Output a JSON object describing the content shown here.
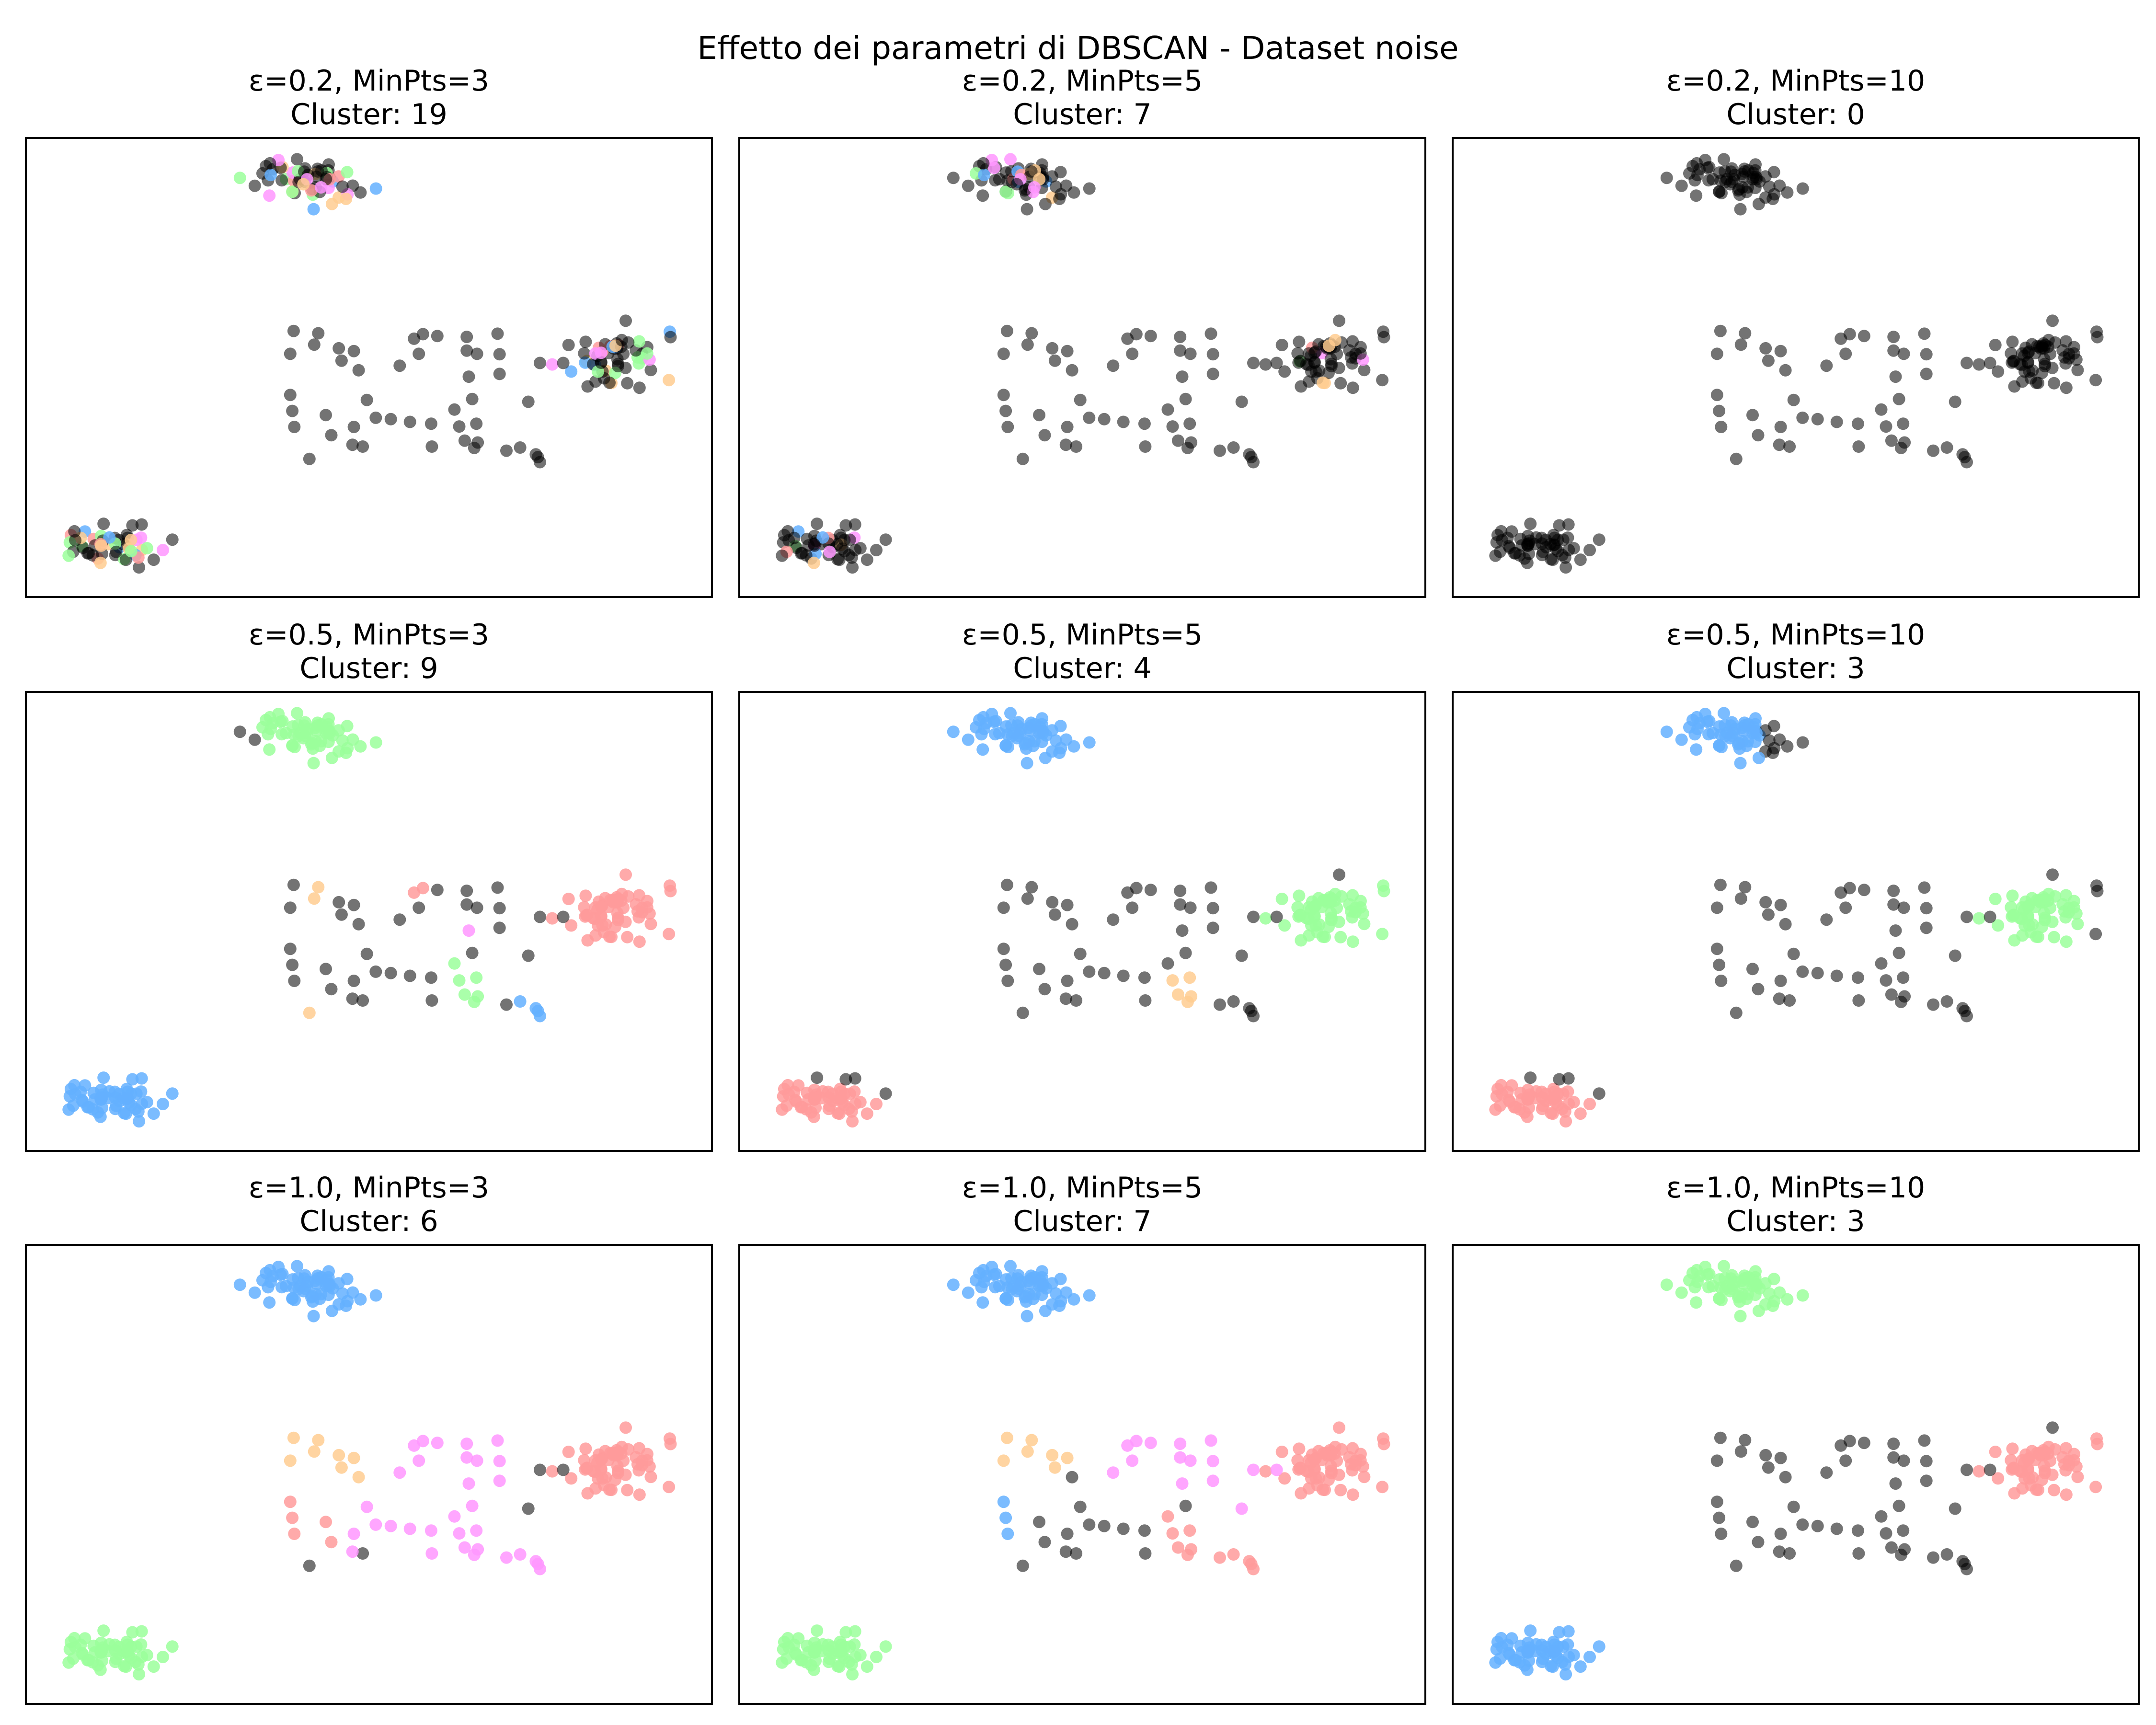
{
  "title": "Effetto dei parametri di DBSCAN - Dataset noise",
  "colors": {
    "noise": "#000000",
    "blue": "#64B0FF",
    "green": "#9BFF9B",
    "red": "#FF9B9B",
    "orange": "#FFCD91",
    "magenta": "#FF96FF"
  },
  "chart_data": [
    {
      "type": "scatter",
      "title": "ε=0.2, MinPts=3",
      "subtitle": "Cluster: 19",
      "parameters": {
        "eps": 0.2,
        "min_pts": 3
      },
      "n_clusters": 19,
      "groups": {
        "G1": "mixed",
        "G2": "noise",
        "G3": "mixed",
        "G4": "mixed"
      },
      "xlim": [
        0,
        100
      ],
      "ylim": [
        0,
        100
      ]
    },
    {
      "type": "scatter",
      "title": "ε=0.2, MinPts=5",
      "subtitle": "Cluster: 7",
      "parameters": {
        "eps": 0.2,
        "min_pts": 5
      },
      "n_clusters": 7,
      "groups": {
        "G1": "mostly-noise",
        "G2": "noise",
        "G3": "mostly-noise",
        "G4": "mostly-noise"
      },
      "xlim": [
        0,
        100
      ],
      "ylim": [
        0,
        100
      ]
    },
    {
      "type": "scatter",
      "title": "ε=0.2, MinPts=10",
      "subtitle": "Cluster: 0",
      "parameters": {
        "eps": 0.2,
        "min_pts": 10
      },
      "n_clusters": 0,
      "groups": {
        "G1": "noise",
        "G2": "noise",
        "G3": "noise",
        "G4": "noise"
      },
      "xlim": [
        0,
        100
      ],
      "ylim": [
        0,
        100
      ]
    },
    {
      "type": "scatter",
      "title": "ε=0.5, MinPts=3",
      "subtitle": "Cluster: 9",
      "parameters": {
        "eps": 0.5,
        "min_pts": 3
      },
      "n_clusters": 9,
      "groups": {
        "G1": "green",
        "G2": "noise-with-small-clusters",
        "G3": "red",
        "G4": "blue"
      },
      "xlim": [
        0,
        100
      ],
      "ylim": [
        0,
        100
      ]
    },
    {
      "type": "scatter",
      "title": "ε=0.5, MinPts=5",
      "subtitle": "Cluster: 4",
      "parameters": {
        "eps": 0.5,
        "min_pts": 5
      },
      "n_clusters": 4,
      "groups": {
        "G1": "blue",
        "G2": "noise",
        "G3": "green",
        "G4": "red"
      },
      "xlim": [
        0,
        100
      ],
      "ylim": [
        0,
        100
      ]
    },
    {
      "type": "scatter",
      "title": "ε=0.5, MinPts=10",
      "subtitle": "Cluster: 3",
      "parameters": {
        "eps": 0.5,
        "min_pts": 10
      },
      "n_clusters": 3,
      "groups": {
        "G1": "blue",
        "G2": "noise",
        "G3": "green",
        "G4": "red"
      },
      "xlim": [
        0,
        100
      ],
      "ylim": [
        0,
        100
      ]
    },
    {
      "type": "scatter",
      "title": "ε=1.0, MinPts=3",
      "subtitle": "Cluster: 6",
      "parameters": {
        "eps": 1.0,
        "min_pts": 3
      },
      "n_clusters": 6,
      "groups": {
        "G1": "blue",
        "G2": "orange/red/magenta",
        "G3": "red",
        "G4": "green"
      },
      "xlim": [
        0,
        100
      ],
      "ylim": [
        0,
        100
      ]
    },
    {
      "type": "scatter",
      "title": "ε=1.0, MinPts=5",
      "subtitle": "Cluster: 7",
      "parameters": {
        "eps": 1.0,
        "min_pts": 5
      },
      "n_clusters": 7,
      "groups": {
        "G1": "blue",
        "G2": "orange/blue/red/magenta",
        "G3": "red",
        "G4": "green"
      },
      "xlim": [
        0,
        100
      ],
      "ylim": [
        0,
        100
      ]
    },
    {
      "type": "scatter",
      "title": "ε=1.0, MinPts=10",
      "subtitle": "Cluster: 3",
      "parameters": {
        "eps": 1.0,
        "min_pts": 10
      },
      "n_clusters": 3,
      "groups": {
        "G1": "green",
        "G2": "noise",
        "G3": "red",
        "G4": "blue"
      },
      "xlim": [
        0,
        100
      ],
      "ylim": [
        0,
        100
      ]
    }
  ]
}
